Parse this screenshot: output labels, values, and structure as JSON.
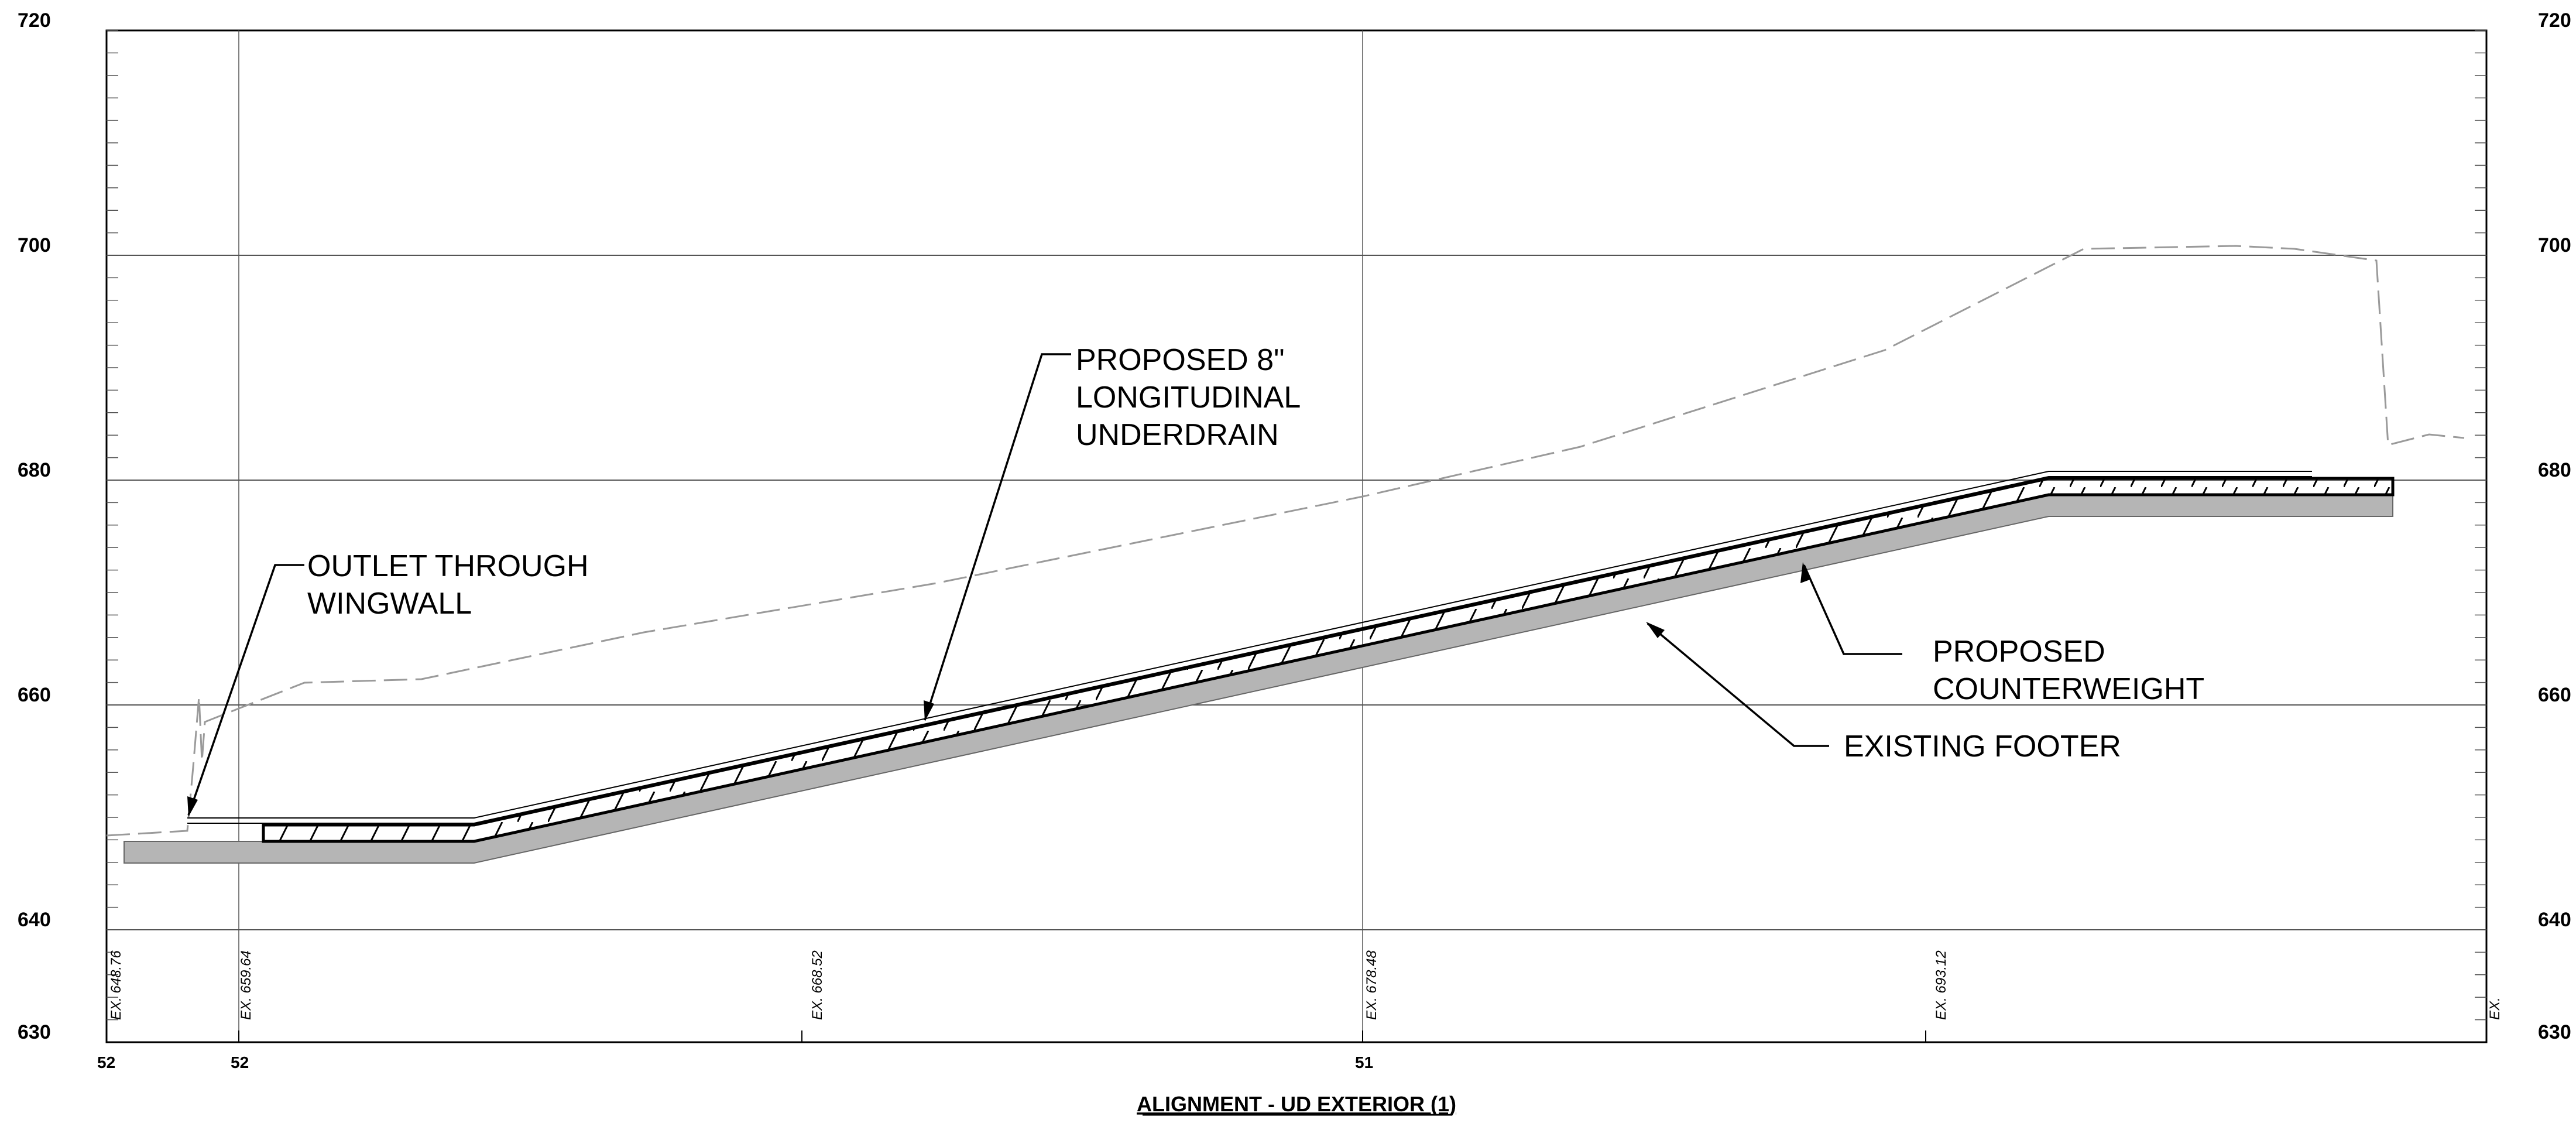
{
  "title": "ALIGNMENT - UD EXTERIOR (1)",
  "elevation_labels": [
    "720",
    "700",
    "680",
    "660",
    "640",
    "630"
  ],
  "station_labels": [
    "52",
    "52",
    "51"
  ],
  "existing_elevation_labels": [
    "EX. 648.76",
    "EX. 659.64",
    "EX. 668.52",
    "EX. 678.48",
    "EX. 693.12",
    "EX."
  ],
  "callouts": {
    "underdrain": [
      "PROPOSED 8\"",
      "LONGITUDINAL",
      "UNDERDRAIN"
    ],
    "outlet": [
      "OUTLET THROUGH",
      "WINGWALL"
    ],
    "counterweight": [
      "PROPOSED",
      "COUNTERWEIGHT"
    ],
    "footer": [
      "EXISTING FOOTER"
    ]
  },
  "colors": {
    "footer_fill": "#b5b5b5",
    "existing_ground": "#9a9a9a",
    "grid": "#555555"
  }
}
